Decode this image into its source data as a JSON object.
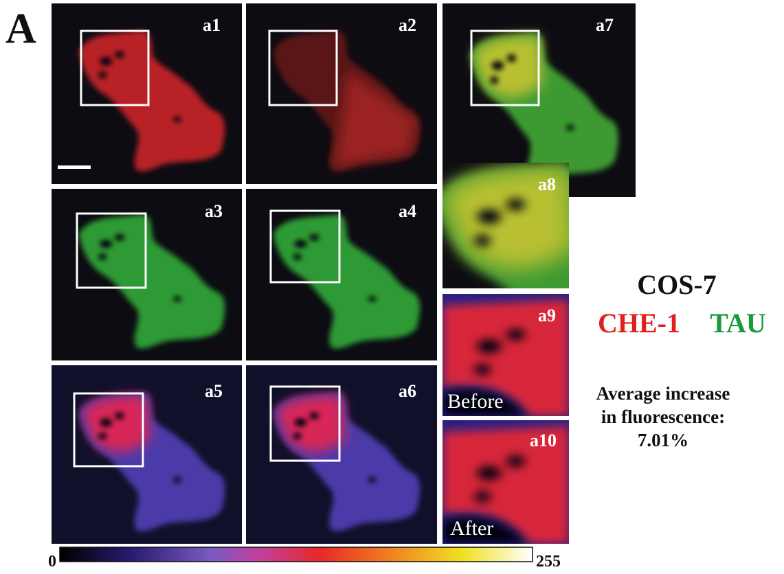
{
  "figure": {
    "label": "A",
    "panels": [
      {
        "label": "a1"
      },
      {
        "label": "a2"
      },
      {
        "label": "a3"
      },
      {
        "label": "a4"
      },
      {
        "label": "a5"
      },
      {
        "label": "a6"
      },
      {
        "label": "a7"
      },
      {
        "label": "a8"
      },
      {
        "label": "a9"
      },
      {
        "label": "a10"
      }
    ],
    "before": "Before",
    "after": "After"
  },
  "side": {
    "cell_line": "COS-7",
    "protein1": "CHE-1",
    "protein2": "TAU",
    "note_line1": "Average increase",
    "note_line2": "in fluorescence:",
    "value": "7.01%"
  },
  "colorbar": {
    "min": 0,
    "max": 255
  }
}
